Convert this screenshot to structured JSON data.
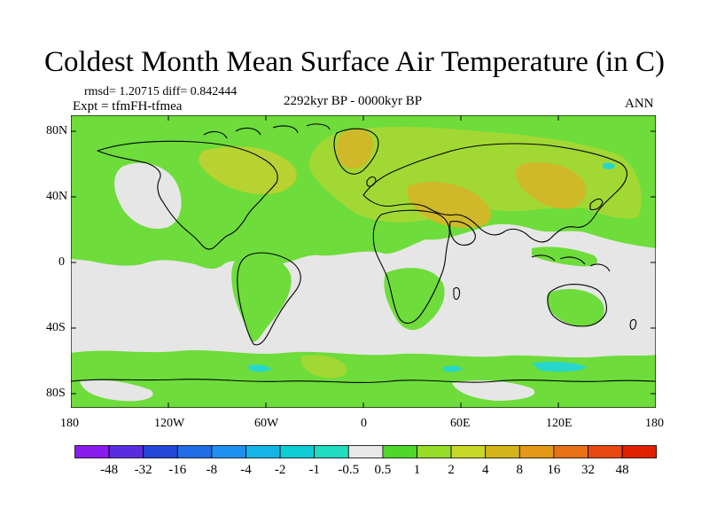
{
  "title": "Coldest Month Mean Surface Air Temperature (in C)",
  "stats": {
    "rmsd_text": "rmsd= 1.20715 diff= 0.842444"
  },
  "experiment": {
    "text": "Expt = tfmFH-tfmea"
  },
  "period": {
    "text": "2292kyr BP - 0000kyr BP"
  },
  "season": {
    "text": "ANN"
  },
  "axes": {
    "lat_labels": [
      "80N",
      "40N",
      "0",
      "40S",
      "80S"
    ],
    "lon_labels": [
      "180",
      "120W",
      "60W",
      "0",
      "60E",
      "120E",
      "180"
    ]
  },
  "colorbar": {
    "labels": [
      "-48",
      "-32",
      "-16",
      "-8",
      "-4",
      "-2",
      "-1",
      "-0.5",
      "0.5",
      "1",
      "2",
      "4",
      "8",
      "16",
      "32",
      "48"
    ],
    "colors": [
      "#8a1cf0",
      "#5a2ce0",
      "#2348d8",
      "#1f6ee8",
      "#1e90f0",
      "#14b4e6",
      "#10ccd4",
      "#20dcc0",
      "#e8e8e8",
      "#4ed82a",
      "#96dc28",
      "#c8d826",
      "#d4b418",
      "#e49818",
      "#e87016",
      "#e84812",
      "#e02000"
    ]
  },
  "palette": {
    "missing": "#e6e6e6",
    "green": "#6edc3a",
    "lime": "#a2d834",
    "yellowgreen": "#b8d232",
    "tan": "#cfb928",
    "cyan": "#28d7cc"
  }
}
